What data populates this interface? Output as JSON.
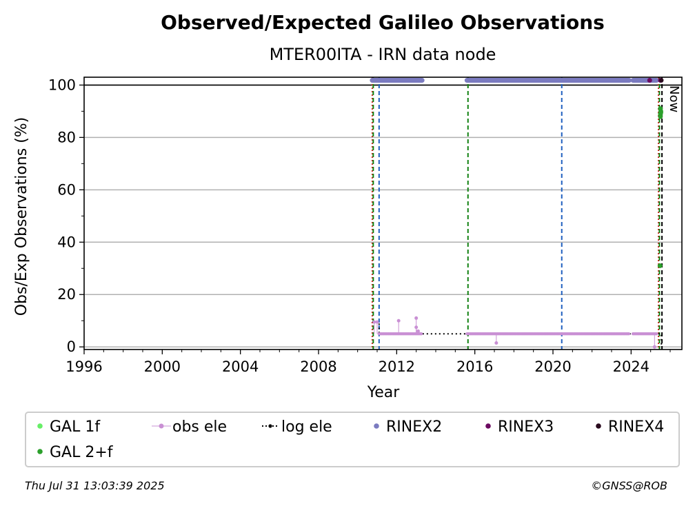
{
  "chart_data": {
    "type": "scatter",
    "title": "Observed/Expected Galileo Observations",
    "subtitle": "MTER00ITA - IRN data node",
    "xlabel": "Year",
    "ylabel": "Obs/Exp Observations (%)",
    "xlim": [
      1996,
      2026.6
    ],
    "ylim": [
      -1,
      103
    ],
    "xticks": [
      "1996",
      "2000",
      "2004",
      "2008",
      "2012",
      "2016",
      "2020",
      "2024"
    ],
    "yticks": [
      "0",
      "20",
      "40",
      "60",
      "80",
      "100"
    ],
    "grid": true,
    "reference_line": 100,
    "now_label": "Now",
    "legend_position": "bottom",
    "legend": [
      {
        "name": "GAL 1f",
        "color": "#66ee66",
        "marker": "dot"
      },
      {
        "name": "obs ele",
        "color": "#c990d4",
        "marker": "stem"
      },
      {
        "name": "log ele",
        "color": "#000000",
        "marker": "dotted-line"
      },
      {
        "name": "RINEX2",
        "color": "#7b7bc0",
        "marker": "dot"
      },
      {
        "name": "RINEX3",
        "color": "#6b0a60",
        "marker": "dot"
      },
      {
        "name": "RINEX4",
        "color": "#2a0a1e",
        "marker": "dot"
      },
      {
        "name": "GAL 2+f",
        "color": "#2ca02c",
        "marker": "dot"
      }
    ],
    "vertical_lines": [
      {
        "x": 2010.75,
        "color": "#d62728",
        "style": "dotted"
      },
      {
        "x": 2010.8,
        "color": "#108010",
        "style": "dashed"
      },
      {
        "x": 2011.1,
        "color": "#1f5fbf",
        "style": "dashed"
      },
      {
        "x": 2015.65,
        "color": "#108010",
        "style": "dashed"
      },
      {
        "x": 2020.45,
        "color": "#1f5fbf",
        "style": "dashed"
      },
      {
        "x": 2025.4,
        "color": "#d62728",
        "style": "dotted"
      },
      {
        "x": 2025.45,
        "color": "#108010",
        "style": "dashed"
      },
      {
        "x": 2025.58,
        "color": "#000000",
        "style": "dashed"
      }
    ],
    "rinex2_ranges": [
      [
        2010.75,
        2013.3
      ],
      [
        2015.6,
        2023.9
      ],
      [
        2024.1,
        2025.3
      ]
    ],
    "rinex2_y": 101.8,
    "rinex3_points": [
      [
        2024.95,
        101.8
      ],
      [
        2025.5,
        101.8
      ]
    ],
    "rinex4_points": [
      [
        2025.55,
        101.8
      ]
    ],
    "log_ele": [
      [
        2010.75,
        9.5
      ],
      [
        2011.1,
        9.5
      ],
      [
        2011.1,
        5
      ],
      [
        2025.55,
        5
      ],
      [
        2025.55,
        0
      ]
    ],
    "obs_ele_ranges": [
      [
        2011.1,
        2013.3,
        5
      ],
      [
        2015.6,
        2023.9,
        5
      ],
      [
        2024.1,
        2025.3,
        5
      ]
    ],
    "obs_ele_extra": [
      [
        2010.85,
        9.5
      ],
      [
        2011.0,
        9.5
      ],
      [
        2012.1,
        10
      ],
      [
        2013.0,
        11
      ],
      [
        2013.0,
        7.5
      ],
      [
        2013.1,
        6
      ],
      [
        2017.1,
        1.5
      ],
      [
        2025.2,
        0
      ]
    ],
    "gal2f_points": [
      [
        2025.48,
        31
      ],
      [
        2025.5,
        88
      ],
      [
        2025.5,
        89
      ],
      [
        2025.52,
        90
      ],
      [
        2025.5,
        91
      ],
      [
        2025.52,
        89.5
      ]
    ]
  },
  "footer": {
    "timestamp": "Thu Jul 31 13:03:39 2025",
    "credit": "©GNSS@ROB"
  }
}
